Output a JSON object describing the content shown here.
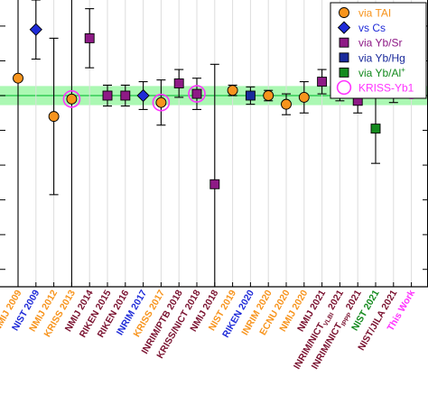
{
  "chart_data": {
    "type": "scatter",
    "title": "",
    "xlabel": "",
    "ylabel": "",
    "ylim": [
      -11,
      5.5
    ],
    "reference_band": {
      "center": 0,
      "half_width": 0.55,
      "fill": "#8ff59a",
      "line": "#33cc55"
    },
    "legend": {
      "placement": "top-right",
      "entries": [
        {
          "label": "via TAI",
          "marker": "circle",
          "color": "#f7941d"
        },
        {
          "label": "vs Cs",
          "marker": "diamond",
          "color": "#1f2bd8"
        },
        {
          "label": "via Yb/Sr",
          "marker": "square",
          "color": "#8e1a86"
        },
        {
          "label": "via Yb/Hg",
          "marker": "square",
          "color": "#1a2a9b"
        },
        {
          "label": "via Yb/Al",
          "label_sup": "+",
          "marker": "square",
          "color": "#148a1e"
        },
        {
          "label": "KRISS-Yb1",
          "marker": "ring",
          "color": "#ff33ff"
        }
      ]
    },
    "categories": [
      "NMIJ 2009",
      "NIST 2009",
      "NMIJ 2012",
      "KRISS 2013",
      "NMIJ 2014",
      "RIKEN 2015",
      "RIKEN 2016",
      "INRIM 2017",
      "KRISS 2017",
      "INRIM/PTB 2018",
      "KRISS/NICT 2018",
      "NMIJ 2018",
      "NIST 2019",
      "RIKEN 2020",
      "INRIM 2020",
      "ECNU 2020",
      "NMIJ 2020",
      "NMIJ 2021",
      "INRIM/NICT VLBI 2021",
      "INRIM/NICT IPPP 2021",
      "NIST 2021",
      "NIST/JILA 2021",
      "This Work"
    ],
    "category_labels": [
      {
        "text": "NMIJ 2009",
        "color": "#f7941d"
      },
      {
        "text": "NIST 2009",
        "color": "#1f2bd8"
      },
      {
        "text": "NMIJ 2012",
        "color": "#f7941d"
      },
      {
        "text": "KRISS 2013",
        "color": "#f7941d"
      },
      {
        "text": "NMIJ 2014",
        "color": "#7a1230"
      },
      {
        "text": "RIKEN 2015",
        "color": "#7a1230"
      },
      {
        "text": "RIKEN 2016",
        "color": "#7a1230"
      },
      {
        "text": "INRIM 2017",
        "color": "#1f2bd8"
      },
      {
        "text": "KRISS 2017",
        "color": "#f7941d"
      },
      {
        "text": "INRIM/PTB 2018",
        "color": "#7a1230"
      },
      {
        "text": "KRISS/NICT 2018",
        "color": "#7a1230"
      },
      {
        "text": "NMIJ 2018",
        "color": "#7a1230"
      },
      {
        "text": "NIST 2019",
        "color": "#f7941d"
      },
      {
        "text": "RIKEN 2020",
        "color": "#1f2bd8"
      },
      {
        "text": "INRIM 2020",
        "color": "#f7941d"
      },
      {
        "text": "ECNU 2020",
        "color": "#f7941d"
      },
      {
        "text": "NMIJ 2020",
        "color": "#f7941d"
      },
      {
        "text": "NMIJ 2021",
        "color": "#7a1230"
      },
      {
        "text": "INRIM/NICT",
        "sub": "VLBI",
        "tail": " 2021",
        "color": "#7a1230"
      },
      {
        "text": "INRIM/NICT",
        "sub": "IPPP",
        "tail": " 2021",
        "color": "#7a1230"
      },
      {
        "text": "NIST 2021",
        "color": "#148a1e"
      },
      {
        "text": "NIST/JILA 2021",
        "color": "#7a1230"
      },
      {
        "text": "This Work",
        "color": "#ff33ff"
      }
    ],
    "points": [
      {
        "i": 0,
        "y": 1.0,
        "err": 20,
        "marker": "circle",
        "color": "#f7941d",
        "ring": false
      },
      {
        "i": 1,
        "y": 3.8,
        "err": 1.7,
        "marker": "diamond",
        "color": "#1f2bd8",
        "ring": false
      },
      {
        "i": 2,
        "y": -1.2,
        "err": 4.5,
        "marker": "circle",
        "color": "#f7941d",
        "ring": false
      },
      {
        "i": 3,
        "y": -0.2,
        "err": 20,
        "marker": "circle",
        "color": "#f7941d",
        "ring": true
      },
      {
        "i": 4,
        "y": 3.3,
        "err": 1.7,
        "marker": "square",
        "color": "#8e1a86",
        "ring": false
      },
      {
        "i": 5,
        "y": 0.0,
        "err": 0.6,
        "marker": "square",
        "color": "#8e1a86",
        "ring": false
      },
      {
        "i": 6,
        "y": 0.0,
        "err": 0.6,
        "marker": "square",
        "color": "#8e1a86",
        "ring": false
      },
      {
        "i": 7,
        "y": 0.0,
        "err": 0.8,
        "marker": "diamond",
        "color": "#1f2bd8",
        "ring": false
      },
      {
        "i": 8,
        "y": -0.4,
        "err": 1.3,
        "marker": "circle",
        "color": "#f7941d",
        "ring": true
      },
      {
        "i": 9,
        "y": 0.7,
        "err": 0.8,
        "marker": "square",
        "color": "#8e1a86",
        "ring": false
      },
      {
        "i": 10,
        "y": 0.1,
        "err": 0.9,
        "marker": "square",
        "color": "#8e1a86",
        "ring": true
      },
      {
        "i": 11,
        "y": -5.1,
        "err": 6.9,
        "marker": "square",
        "color": "#8e1a86",
        "ring": false
      },
      {
        "i": 12,
        "y": 0.3,
        "err": 0.3,
        "marker": "circle",
        "color": "#f7941d",
        "ring": false
      },
      {
        "i": 13,
        "y": 0.0,
        "err": 0.5,
        "marker": "square",
        "color": "#1a2a9b",
        "ring": false
      },
      {
        "i": 14,
        "y": 0.0,
        "err": 0.3,
        "marker": "circle",
        "color": "#f7941d",
        "ring": false
      },
      {
        "i": 15,
        "y": -0.5,
        "err": 0.6,
        "marker": "circle",
        "color": "#f7941d",
        "ring": false
      },
      {
        "i": 16,
        "y": -0.1,
        "err": 0.9,
        "marker": "circle",
        "color": "#f7941d",
        "ring": false
      },
      {
        "i": 17,
        "y": 0.8,
        "err": 0.7,
        "marker": "square",
        "color": "#8e1a86",
        "ring": false
      },
      {
        "i": 18,
        "y": 0.3,
        "err": 0.6,
        "marker": "square",
        "color": "#8e1a86",
        "ring": false
      },
      {
        "i": 19,
        "y": -0.3,
        "err": 0.7,
        "marker": "square",
        "color": "#8e1a86",
        "ring": false
      },
      {
        "i": 20,
        "y": -1.9,
        "err": 2.0,
        "marker": "square",
        "color": "#148a1e",
        "ring": false
      },
      {
        "i": 21,
        "y": 0.1,
        "err": 0.5,
        "marker": "square",
        "color": "#8e1a86",
        "ring": false
      },
      {
        "i": 22,
        "y": 0.3,
        "err": 0.3,
        "marker": "circle",
        "color": "#f7941d",
        "ring": true
      }
    ]
  }
}
